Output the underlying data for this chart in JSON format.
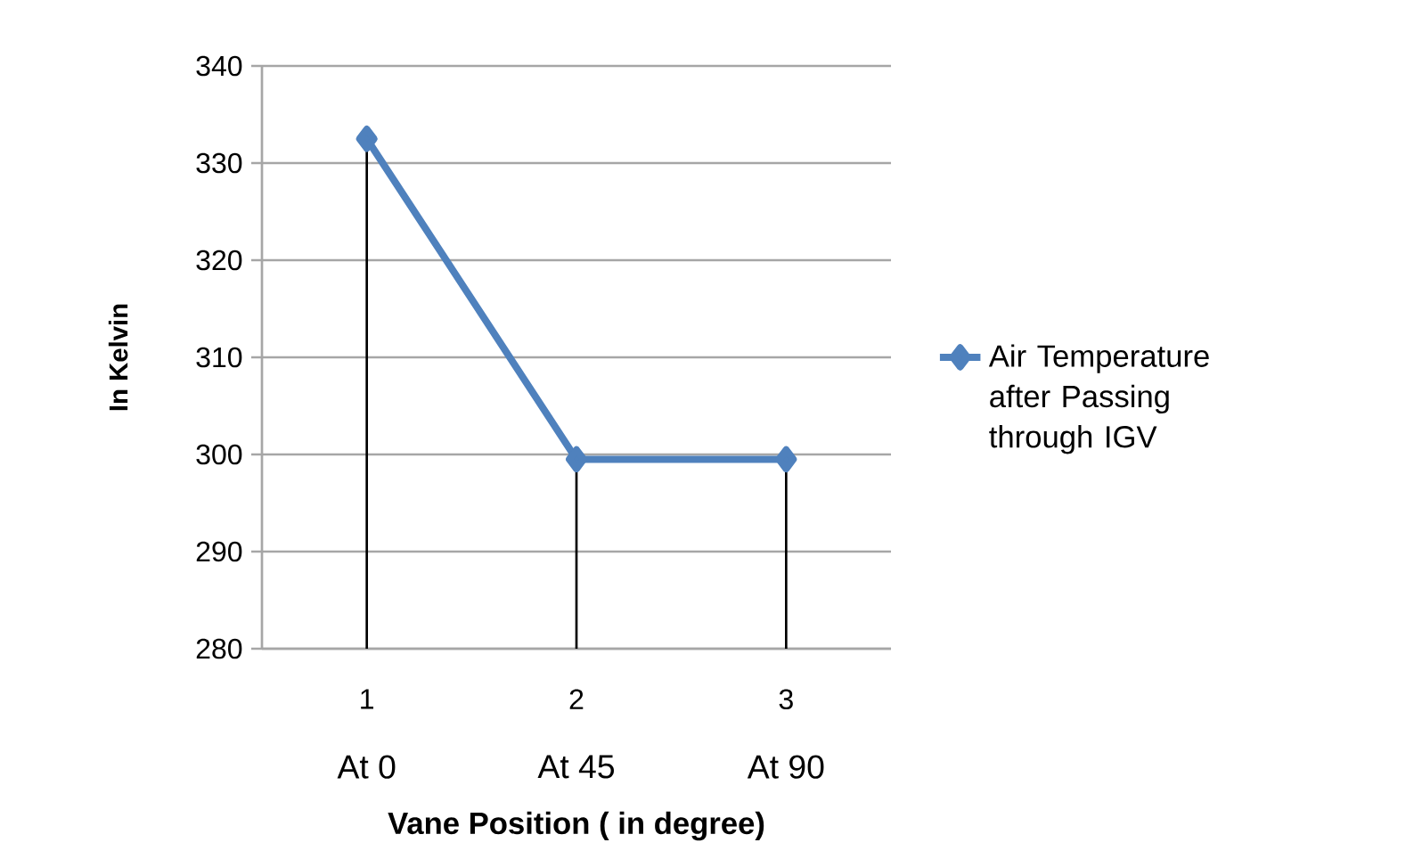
{
  "chart_data": {
    "type": "line",
    "xlabel": "Vane Position  ( in degree)",
    "ylabel": "In Kelvin",
    "categories": [
      "1",
      "2",
      "3"
    ],
    "series": [
      {
        "name": "Air Temperature after Passing through IGV",
        "color": "#4f81bd",
        "values": [
          332.5,
          299.5,
          299.5
        ],
        "errors": [
          [
            280,
            332.5
          ],
          [
            280,
            299.5
          ],
          [
            280,
            299.5
          ]
        ]
      }
    ],
    "ylim": [
      280,
      340
    ],
    "yticks": [
      280,
      290,
      300,
      310,
      320,
      330,
      340
    ],
    "annotations": [
      "At 0",
      "At 45",
      "At 90"
    ],
    "grid": "y",
    "legend": "right",
    "marker": "diamond",
    "line_style": "solid"
  }
}
